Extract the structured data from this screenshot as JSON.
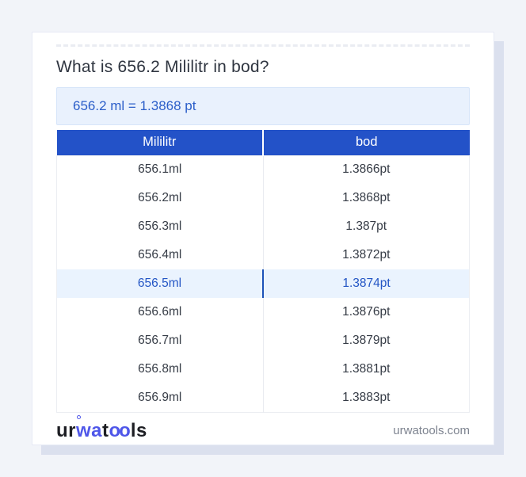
{
  "header": {
    "title": "What is 656.2 Mililitr in bod?"
  },
  "result": {
    "text": "656.2 ml = 1.3868 pt"
  },
  "table": {
    "headers": [
      "Mililitr",
      "bod"
    ],
    "rows": [
      {
        "mililitr": "656.1ml",
        "bod": "1.3866pt",
        "highlighted": false
      },
      {
        "mililitr": "656.2ml",
        "bod": "1.3868pt",
        "highlighted": false
      },
      {
        "mililitr": "656.3ml",
        "bod": "1.387pt",
        "highlighted": false
      },
      {
        "mililitr": "656.4ml",
        "bod": "1.3872pt",
        "highlighted": false
      },
      {
        "mililitr": "656.5ml",
        "bod": "1.3874pt",
        "highlighted": true
      },
      {
        "mililitr": "656.6ml",
        "bod": "1.3876pt",
        "highlighted": false
      },
      {
        "mililitr": "656.7ml",
        "bod": "1.3879pt",
        "highlighted": false
      },
      {
        "mililitr": "656.8ml",
        "bod": "1.3881pt",
        "highlighted": false
      },
      {
        "mililitr": "656.9ml",
        "bod": "1.3883pt",
        "highlighted": false
      }
    ]
  },
  "footer": {
    "logo": {
      "seg1": "ur",
      "seg2": "wa",
      "seg3": "t",
      "seg4": "oo",
      "seg5": "ls"
    },
    "site_url": "urwatools.com"
  },
  "colors": {
    "accent_blue": "#2352c8",
    "highlight_bg": "#eaf3fe",
    "highlight_text": "#2456c5",
    "highlight_divider": "#1d52b8",
    "result_bg": "#e9f1fd",
    "result_text": "#2b5ec9",
    "logo_blue": "#4f57e9",
    "page_bg": "#f2f4f9"
  }
}
